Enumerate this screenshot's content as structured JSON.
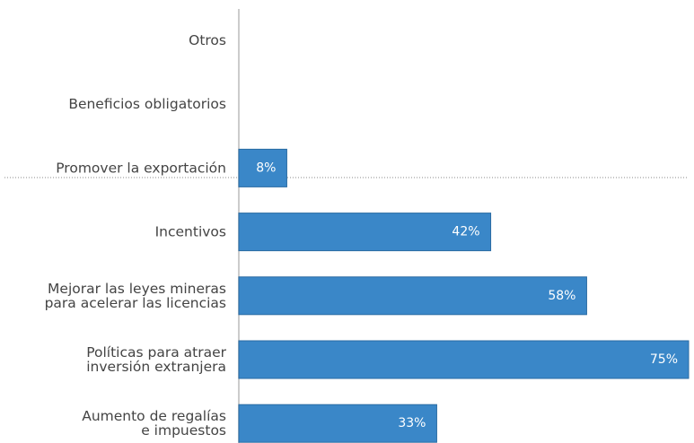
{
  "chart_data": {
    "type": "bar",
    "orientation": "horizontal",
    "categories": [
      "Otros",
      "Beneficios obligatorios",
      "Promover la exportación",
      "Incentivos",
      "Mejorar las leyes mineras\npara acelerar las licencias",
      "Políticas para atraer\ninversión extranjera",
      "Aumento de regalías\ne impuestos"
    ],
    "values": [
      null,
      null,
      8,
      42,
      58,
      75,
      33
    ],
    "value_labels": [
      null,
      null,
      "8%",
      "42%",
      "58%",
      "75%",
      "33%"
    ],
    "color": "#3a87c8",
    "xlim": [
      0,
      75
    ]
  }
}
